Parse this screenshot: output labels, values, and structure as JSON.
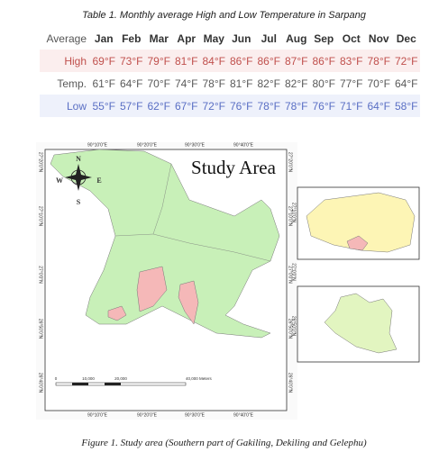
{
  "table_caption": "Table 1. Monthly average High and Low Temperature in Sarpang",
  "table": {
    "header": [
      "Average",
      "Jan",
      "Feb",
      "Mar",
      "Apr",
      "May",
      "Jun",
      "Jul",
      "Aug",
      "Sep",
      "Oct",
      "Nov",
      "Dec"
    ],
    "rows": [
      [
        "High",
        "69°F",
        "73°F",
        "79°F",
        "81°F",
        "84°F",
        "86°F",
        "86°F",
        "87°F",
        "86°F",
        "83°F",
        "78°F",
        "72°F"
      ],
      [
        "Temp.",
        "61°F",
        "64°F",
        "70°F",
        "74°F",
        "78°F",
        "81°F",
        "82°F",
        "82°F",
        "80°F",
        "77°F",
        "70°F",
        "64°F"
      ],
      [
        "Low",
        "55°F",
        "57°F",
        "62°F",
        "67°F",
        "72°F",
        "76°F",
        "78°F",
        "78°F",
        "76°F",
        "71°F",
        "64°F",
        "58°F"
      ]
    ]
  },
  "figure": {
    "title": "Study Area",
    "compass": [
      "N",
      "E",
      "W",
      "S"
    ],
    "lon_labels_top": [
      "90°10'0\"E",
      "90°20'0\"E",
      "90°30'0\"E",
      "90°40'0\"E"
    ],
    "lon_labels_bottom": [
      "90°10'0\"E",
      "90°20'0\"E",
      "90°30'0\"E",
      "90°40'0\"E"
    ],
    "lat_labels_left": [
      "27°20'0\"N",
      "27°10'0\"N",
      "27°0'0\"N",
      "26°50'0\"N",
      "26°40'0\"N"
    ],
    "lat_labels_right": [
      "27°20'0\"N",
      "27°10'0\"N",
      "27°0'0\"N",
      "26°50'0\"N",
      "26°40'0\"N"
    ],
    "inset_lat_labels": [
      "27°10'0\"N",
      "27°0'0\"N",
      "26°50'0\"N"
    ],
    "scale_labels": [
      "0",
      "10,000",
      "20,000",
      "40,000 Meters"
    ],
    "caption": "Figure 1. Study area (Southern part of Gakiling, Dekiling and Gelephu)"
  }
}
